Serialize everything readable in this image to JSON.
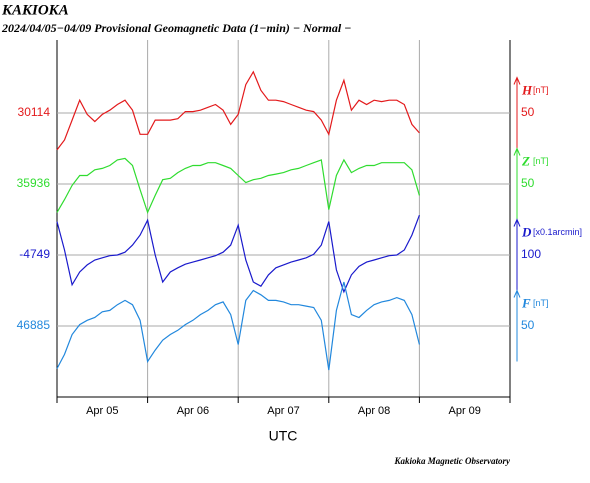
{
  "chart_data": {
    "type": "line",
    "title": "KAKIOKA",
    "subtitle": "2024/04/05−04/09  Provisional Geomagnetic Data (1−min)  − Normal −",
    "xlabel": "UTC",
    "footer": "Kakioka Magnetic Observatory",
    "xlim": [
      0,
      120
    ],
    "xgrid": [
      0,
      24,
      48,
      72,
      96,
      120
    ],
    "xticks": [
      {
        "value": 12,
        "label": "Apr 05"
      },
      {
        "value": 36,
        "label": "Apr 06"
      },
      {
        "value": 60,
        "label": "Apr 07"
      },
      {
        "value": 84,
        "label": "Apr 08"
      },
      {
        "value": 108,
        "label": "Apr 09"
      }
    ],
    "grid": true,
    "x": [
      0,
      2,
      4,
      6,
      8,
      10,
      12,
      14,
      16,
      18,
      20,
      22,
      24,
      26,
      28,
      30,
      32,
      34,
      36,
      38,
      40,
      42,
      44,
      46,
      48,
      50,
      52,
      54,
      56,
      58,
      60,
      62,
      64,
      66,
      68,
      70,
      72,
      74,
      76,
      78,
      80,
      82,
      84,
      86,
      88,
      90,
      92,
      94,
      96
    ],
    "series": [
      {
        "name": "H",
        "unit": "[nT]",
        "color": "#e31a1c",
        "baseline": 30114,
        "scale": 50,
        "values": [
          30088,
          30095,
          30109,
          30123,
          30113,
          30108,
          30113,
          30116,
          30120,
          30123,
          30116,
          30099,
          30099,
          30109,
          30109,
          30109,
          30110,
          30115,
          30115,
          30116,
          30118,
          30120,
          30116,
          30106,
          30113,
          30134,
          30143,
          30130,
          30123,
          30123,
          30122,
          30120,
          30118,
          30116,
          30115,
          30109,
          30099,
          30123,
          30137,
          30116,
          30123,
          30120,
          30123,
          30122,
          30123,
          30123,
          30120,
          30106,
          30100
        ]
      },
      {
        "name": "Z",
        "unit": "[nT]",
        "color": "#2fdc2f",
        "baseline": 35936,
        "scale": 50,
        "values": [
          35916,
          35925,
          35935,
          35942,
          35942,
          35946,
          35947,
          35949,
          35953,
          35954,
          35949,
          35932,
          35916,
          35928,
          35939,
          35940,
          35944,
          35947,
          35949,
          35949,
          35951,
          35951,
          35949,
          35947,
          35942,
          35937,
          35939,
          35940,
          35942,
          35943,
          35944,
          35946,
          35947,
          35949,
          35951,
          35953,
          35918,
          35942,
          35953,
          35944,
          35947,
          35949,
          35949,
          35951,
          35951,
          35951,
          35951,
          35946,
          35928
        ]
      },
      {
        "name": "D",
        "unit": "[x0.1arcmin]",
        "color": "#1a1acc",
        "baseline": -4749,
        "scale": 100,
        "values": [
          -4702,
          -4742,
          -4791,
          -4773,
          -4763,
          -4756,
          -4753,
          -4750,
          -4749,
          -4745,
          -4735,
          -4721,
          -4700,
          -4749,
          -4787,
          -4773,
          -4767,
          -4762,
          -4759,
          -4756,
          -4753,
          -4750,
          -4745,
          -4735,
          -4707,
          -4756,
          -4787,
          -4793,
          -4777,
          -4767,
          -4763,
          -4759,
          -4756,
          -4753,
          -4748,
          -4735,
          -4702,
          -4770,
          -4801,
          -4777,
          -4765,
          -4759,
          -4756,
          -4753,
          -4750,
          -4749,
          -4742,
          -4721,
          -4693
        ]
      },
      {
        "name": "F",
        "unit": "[nT]",
        "color": "#2288dd",
        "baseline": 46885,
        "scale": 50,
        "values": [
          46855,
          46865,
          46879,
          46886,
          46889,
          46891,
          46895,
          46896,
          46900,
          46903,
          46900,
          46889,
          46860,
          46868,
          46875,
          46879,
          46882,
          46886,
          46889,
          46893,
          46896,
          46900,
          46902,
          46893,
          46872,
          46903,
          46910,
          46907,
          46903,
          46903,
          46902,
          46900,
          46900,
          46899,
          46898,
          46889,
          46854,
          46896,
          46916,
          46893,
          46891,
          46896,
          46900,
          46902,
          46903,
          46905,
          46903,
          46893,
          46872
        ]
      }
    ]
  }
}
